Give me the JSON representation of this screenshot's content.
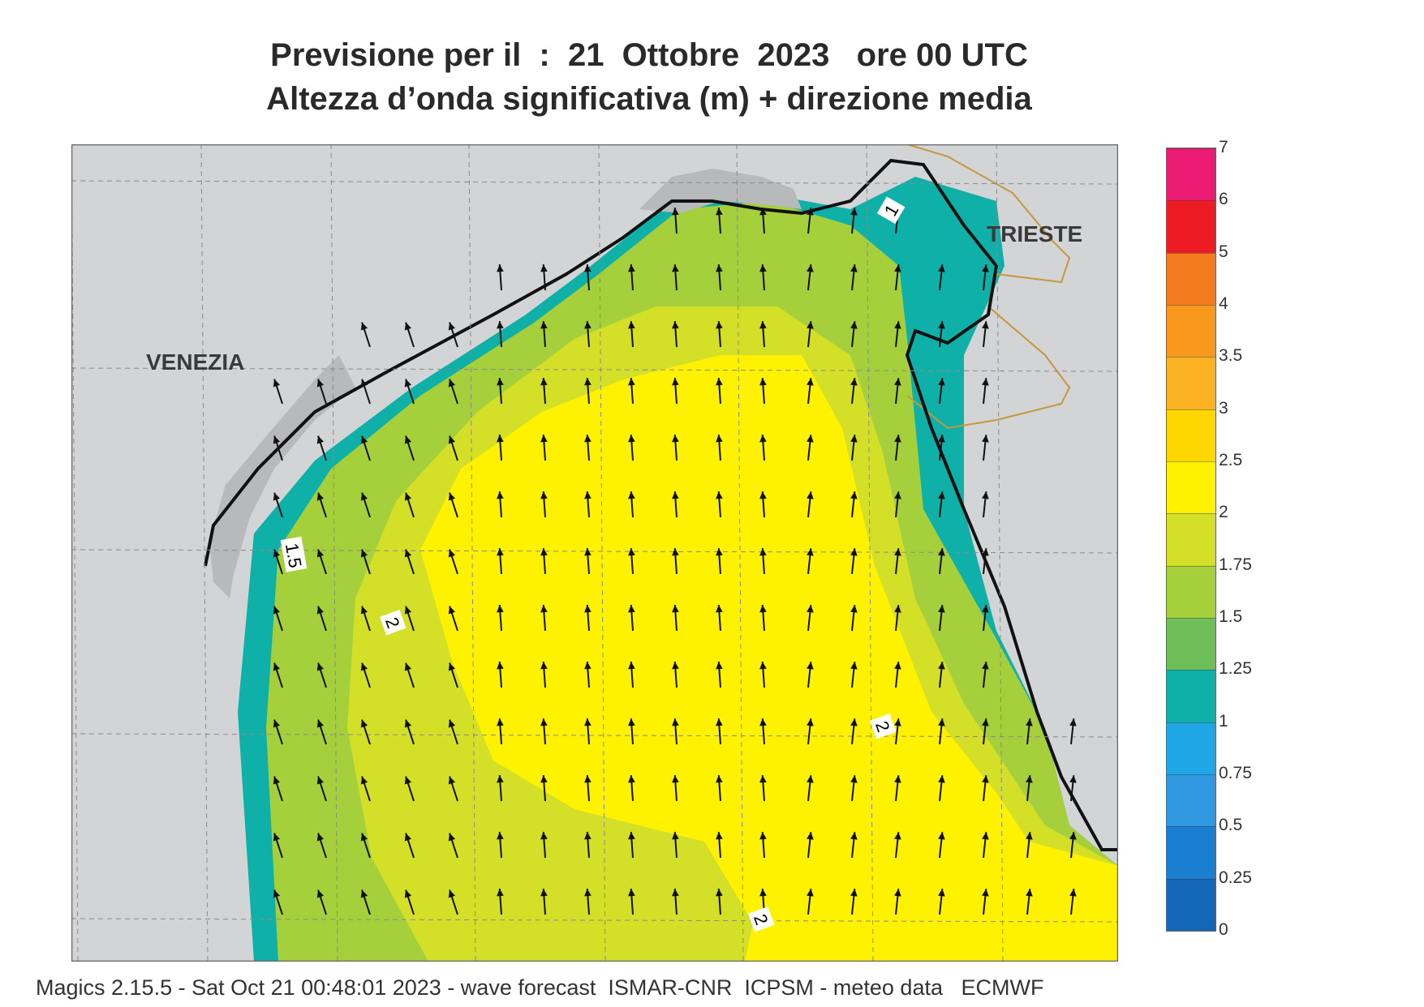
{
  "title": {
    "line1": "Previsione per il  :  21  Ottobre  2023   ore 00 UTC",
    "line2": "Altezza d’onda significativa (m) + direzione media"
  },
  "map": {
    "cities": {
      "venezia": "VENEZIA",
      "trieste": "TRIESTE"
    },
    "contour_labels": [
      "1",
      "1.5",
      "2",
      "2",
      "2"
    ],
    "arrow_direction": "north / north-west"
  },
  "legend": {
    "ticks": [
      "0",
      "0.25",
      "0.5",
      "0.75",
      "1",
      "1.25",
      "1.5",
      "1.75",
      "2",
      "2.5",
      "3",
      "3.5",
      "4",
      "5",
      "6",
      "7"
    ],
    "colors": [
      "#1467b8",
      "#1a7fd0",
      "#2f98e0",
      "#1fa6e6",
      "#0fb0a8",
      "#6ebf5a",
      "#a6cf3c",
      "#d4df28",
      "#fff200",
      "#ffd700",
      "#fbb222",
      "#f8981d",
      "#f47b20",
      "#ed1c24",
      "#ec1c74"
    ]
  },
  "colors": {
    "land": "#d3d4d6",
    "land_grey": "#b8b9bb",
    "sea_yellow": "#fff200",
    "sea_yellowgreen": "#d4df28",
    "sea_lightgreen": "#a6cf3c",
    "sea_green": "#6ebf5a",
    "sea_teal": "#0fb0a8",
    "sea_blue": "#1a9de0",
    "border": "#c8963c"
  },
  "footer": "Magics 2.15.5 - Sat Oct 21 00:48:01 2023 - wave forecast  ISMAR-CNR  ICPSM - meteo data   ECMWF"
}
